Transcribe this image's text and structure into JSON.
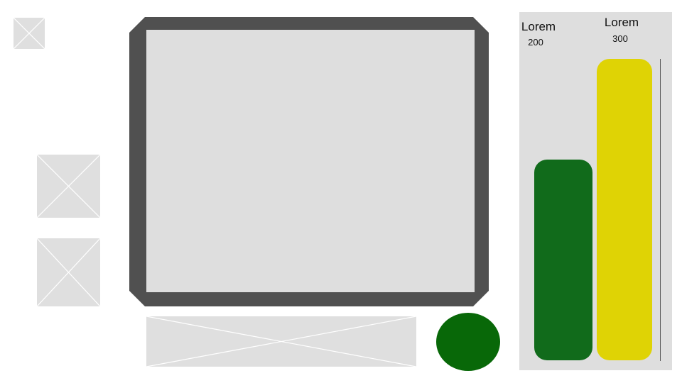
{
  "colors": {
    "frame": "#505050",
    "screen": "#dedede",
    "placeholder": "#dfdfdf",
    "circle": "#086808",
    "panel": "#dedede"
  },
  "chart_data": {
    "type": "bar",
    "categories": [
      "Lorem",
      "Lorem"
    ],
    "values": [
      200,
      300
    ],
    "data_labels": [
      "200",
      "300"
    ],
    "colors": [
      "#116b1b",
      "#dfd305"
    ],
    "ylim": [
      0,
      300
    ]
  }
}
